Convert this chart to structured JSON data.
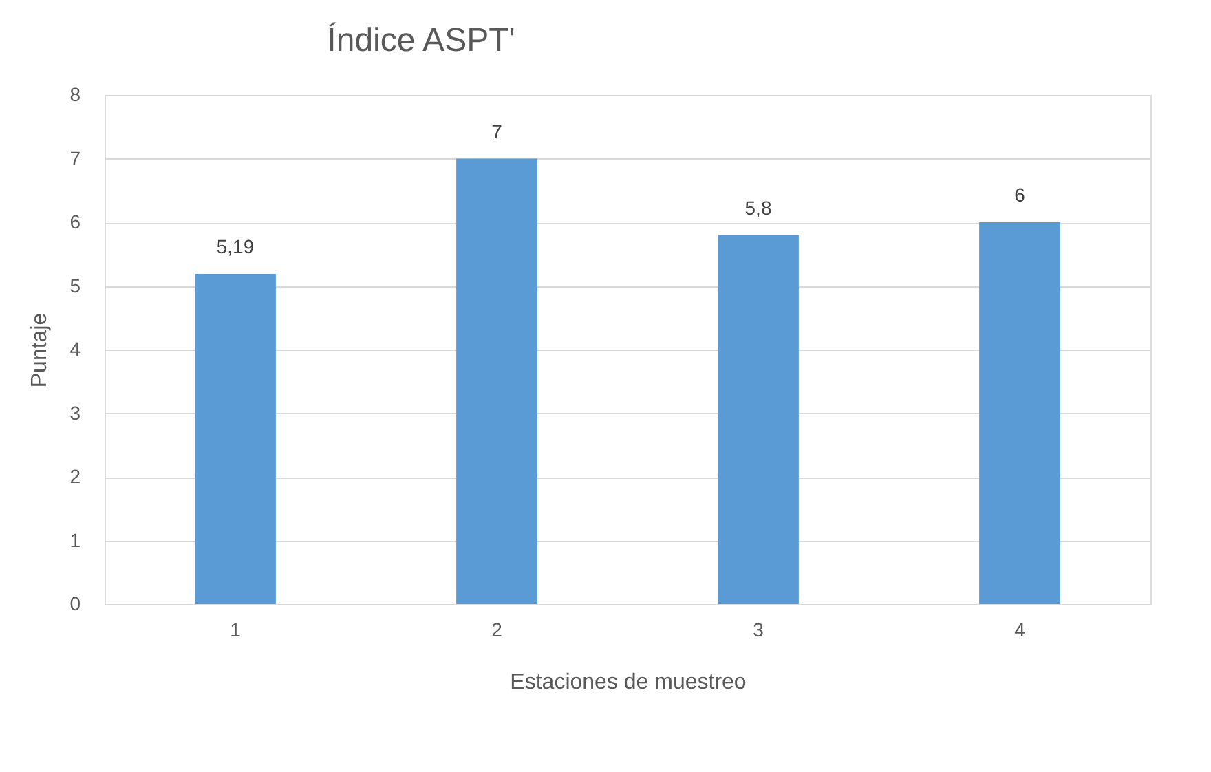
{
  "chart_data": {
    "type": "bar",
    "title": "Índice ASPT'",
    "xlabel": "Estaciones de muestreo",
    "ylabel": "Puntaje",
    "categories": [
      "1",
      "2",
      "3",
      "4"
    ],
    "values": [
      5.19,
      7,
      5.8,
      6
    ],
    "value_labels": [
      "5,19",
      "7",
      "5,8",
      "6"
    ],
    "color": "#5b9bd5",
    "ylim": [
      0,
      8
    ],
    "yticks": [
      0,
      1,
      2,
      3,
      4,
      5,
      6,
      7,
      8
    ],
    "grid": "y"
  }
}
